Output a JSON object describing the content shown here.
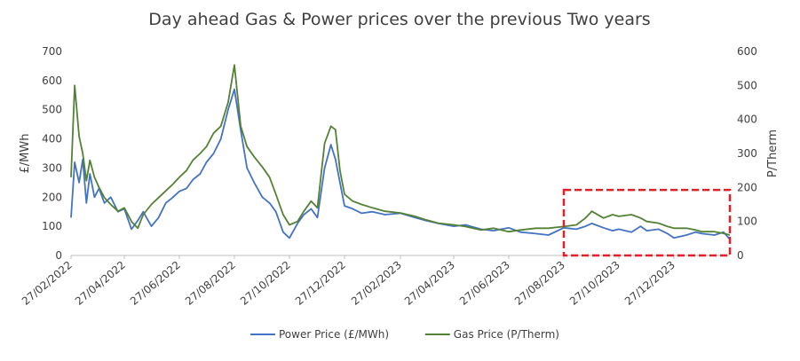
{
  "chart_data": {
    "type": "line",
    "title": "Day ahead Gas & Power prices over the previous Two years",
    "ylabel_left": "£/MWh",
    "ylabel_right": "P/Therm",
    "ylim_left": [
      0,
      700
    ],
    "ylim_right": [
      0,
      600
    ],
    "yticks_left": [
      "0",
      "100",
      "200",
      "300",
      "400",
      "500",
      "600",
      "700"
    ],
    "yticks_right": [
      "0",
      "100",
      "200",
      "300",
      "400",
      "500",
      "600"
    ],
    "xticks": [
      "27/02/2022",
      "27/04/2022",
      "27/06/2022",
      "27/08/2022",
      "27/10/2022",
      "27/12/2022",
      "27/02/2023",
      "27/04/2023",
      "27/06/2023",
      "27/08/2023",
      "27/10/2023",
      "27/12/2023"
    ],
    "grid": false,
    "legend_position": "bottom",
    "highlight_box": {
      "x_start": "2023-08-27",
      "x_end": "2024-02-27",
      "color": "#e31e24",
      "style": "dashed"
    },
    "series": [
      {
        "name": "Power Price (£/MWh)",
        "axis": "left",
        "color": "#4472c4",
        "x": [
          "2022-02-27",
          "2022-03-03",
          "2022-03-08",
          "2022-03-12",
          "2022-03-16",
          "2022-03-20",
          "2022-03-25",
          "2022-03-30",
          "2022-04-05",
          "2022-04-12",
          "2022-04-20",
          "2022-04-27",
          "2022-05-05",
          "2022-05-12",
          "2022-05-18",
          "2022-05-27",
          "2022-06-04",
          "2022-06-12",
          "2022-06-20",
          "2022-06-27",
          "2022-07-05",
          "2022-07-12",
          "2022-07-20",
          "2022-07-27",
          "2022-08-04",
          "2022-08-12",
          "2022-08-20",
          "2022-08-27",
          "2022-09-03",
          "2022-09-10",
          "2022-09-18",
          "2022-09-27",
          "2022-10-05",
          "2022-10-12",
          "2022-10-20",
          "2022-10-27",
          "2022-11-05",
          "2022-11-12",
          "2022-11-20",
          "2022-11-27",
          "2022-12-05",
          "2022-12-12",
          "2022-12-17",
          "2022-12-22",
          "2022-12-27",
          "2023-01-05",
          "2023-01-15",
          "2023-01-27",
          "2023-02-10",
          "2023-02-27",
          "2023-03-15",
          "2023-03-27",
          "2023-04-10",
          "2023-04-27",
          "2023-05-10",
          "2023-05-27",
          "2023-06-10",
          "2023-06-27",
          "2023-07-10",
          "2023-07-27",
          "2023-08-10",
          "2023-08-27",
          "2023-09-10",
          "2023-09-20",
          "2023-09-27",
          "2023-10-10",
          "2023-10-20",
          "2023-10-27",
          "2023-11-10",
          "2023-11-20",
          "2023-11-27",
          "2023-12-10",
          "2023-12-20",
          "2023-12-27",
          "2024-01-10",
          "2024-01-20",
          "2024-01-27",
          "2024-02-10",
          "2024-02-20",
          "2024-02-27"
        ],
        "values": [
          130,
          320,
          250,
          330,
          180,
          280,
          200,
          230,
          180,
          200,
          150,
          160,
          90,
          120,
          150,
          100,
          130,
          180,
          200,
          220,
          230,
          260,
          280,
          320,
          350,
          400,
          500,
          570,
          430,
          300,
          250,
          200,
          180,
          150,
          80,
          60,
          110,
          140,
          160,
          130,
          300,
          380,
          330,
          250,
          170,
          160,
          145,
          150,
          140,
          145,
          130,
          120,
          110,
          100,
          105,
          90,
          85,
          95,
          80,
          75,
          70,
          95,
          90,
          100,
          110,
          95,
          85,
          90,
          80,
          100,
          85,
          90,
          75,
          60,
          70,
          80,
          75,
          70,
          80,
          55
        ]
      },
      {
        "name": "Gas Price (P/Therm)",
        "axis": "right",
        "color": "#538135",
        "x": [
          "2022-02-27",
          "2022-03-03",
          "2022-03-08",
          "2022-03-12",
          "2022-03-16",
          "2022-03-20",
          "2022-03-25",
          "2022-03-30",
          "2022-04-05",
          "2022-04-12",
          "2022-04-20",
          "2022-04-27",
          "2022-05-05",
          "2022-05-12",
          "2022-05-18",
          "2022-05-27",
          "2022-06-04",
          "2022-06-12",
          "2022-06-20",
          "2022-06-27",
          "2022-07-05",
          "2022-07-12",
          "2022-07-20",
          "2022-07-27",
          "2022-08-04",
          "2022-08-12",
          "2022-08-20",
          "2022-08-27",
          "2022-09-03",
          "2022-09-10",
          "2022-09-18",
          "2022-09-27",
          "2022-10-05",
          "2022-10-12",
          "2022-10-20",
          "2022-10-27",
          "2022-11-05",
          "2022-11-12",
          "2022-11-20",
          "2022-11-27",
          "2022-12-05",
          "2022-12-12",
          "2022-12-17",
          "2022-12-22",
          "2022-12-27",
          "2023-01-05",
          "2023-01-15",
          "2023-01-27",
          "2023-02-10",
          "2023-02-27",
          "2023-03-15",
          "2023-03-27",
          "2023-04-10",
          "2023-04-27",
          "2023-05-10",
          "2023-05-27",
          "2023-06-10",
          "2023-06-27",
          "2023-07-10",
          "2023-07-27",
          "2023-08-10",
          "2023-08-27",
          "2023-09-10",
          "2023-09-20",
          "2023-09-27",
          "2023-10-10",
          "2023-10-20",
          "2023-10-27",
          "2023-11-10",
          "2023-11-20",
          "2023-11-27",
          "2023-12-10",
          "2023-12-20",
          "2023-12-27",
          "2024-01-10",
          "2024-01-20",
          "2024-01-27",
          "2024-02-10",
          "2024-02-20",
          "2024-02-27"
        ],
        "values": [
          230,
          500,
          350,
          300,
          220,
          280,
          230,
          200,
          170,
          150,
          130,
          140,
          100,
          80,
          120,
          150,
          170,
          190,
          210,
          230,
          250,
          280,
          300,
          320,
          360,
          380,
          450,
          560,
          380,
          320,
          290,
          260,
          230,
          180,
          120,
          90,
          100,
          130,
          160,
          140,
          330,
          380,
          370,
          250,
          180,
          160,
          150,
          140,
          130,
          125,
          115,
          105,
          95,
          90,
          85,
          75,
          80,
          70,
          75,
          80,
          80,
          85,
          90,
          110,
          130,
          110,
          120,
          115,
          120,
          110,
          100,
          95,
          85,
          80,
          80,
          75,
          70,
          70,
          65,
          60
        ]
      }
    ]
  }
}
